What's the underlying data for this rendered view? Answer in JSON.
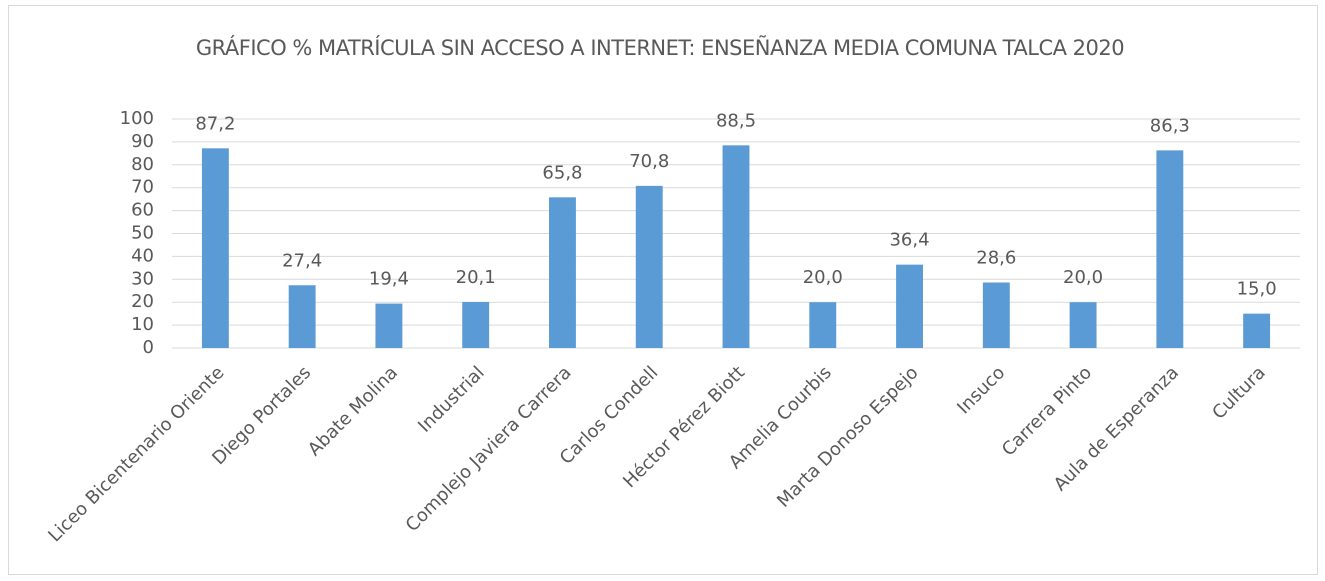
{
  "chart_data": {
    "type": "bar",
    "title": "GRÁFICO % MATRÍCULA SIN ACCESO A INTERNET: ENSEÑANZA MEDIA COMUNA TALCA 2020",
    "categories": [
      "Liceo Bicentenario Oriente",
      "Diego Portales",
      "Abate Molina",
      "Industrial",
      "Complejo Javiera Carrera",
      "Carlos Condell",
      "Héctor Pérez Biott",
      "Amelia Courbis",
      "Marta Donoso Espejo",
      "Insuco",
      "Carrera Pinto",
      "Aula de Esperanza",
      "Cultura"
    ],
    "values": [
      87.2,
      27.4,
      19.4,
      20.1,
      65.8,
      70.8,
      88.5,
      20.0,
      36.4,
      28.6,
      20.0,
      86.3,
      15.0
    ],
    "value_labels": [
      "87,2",
      "27,4",
      "19,4",
      "20,1",
      "65,8",
      "70,8",
      "88,5",
      "20,0",
      "36,4",
      "28,6",
      "20,0",
      "86,3",
      "15,0"
    ],
    "color": "#5b9bd5",
    "ylim": [
      0,
      100
    ],
    "yticks": [
      0,
      10,
      20,
      30,
      40,
      50,
      60,
      70,
      80,
      90,
      100
    ],
    "grid": true
  }
}
